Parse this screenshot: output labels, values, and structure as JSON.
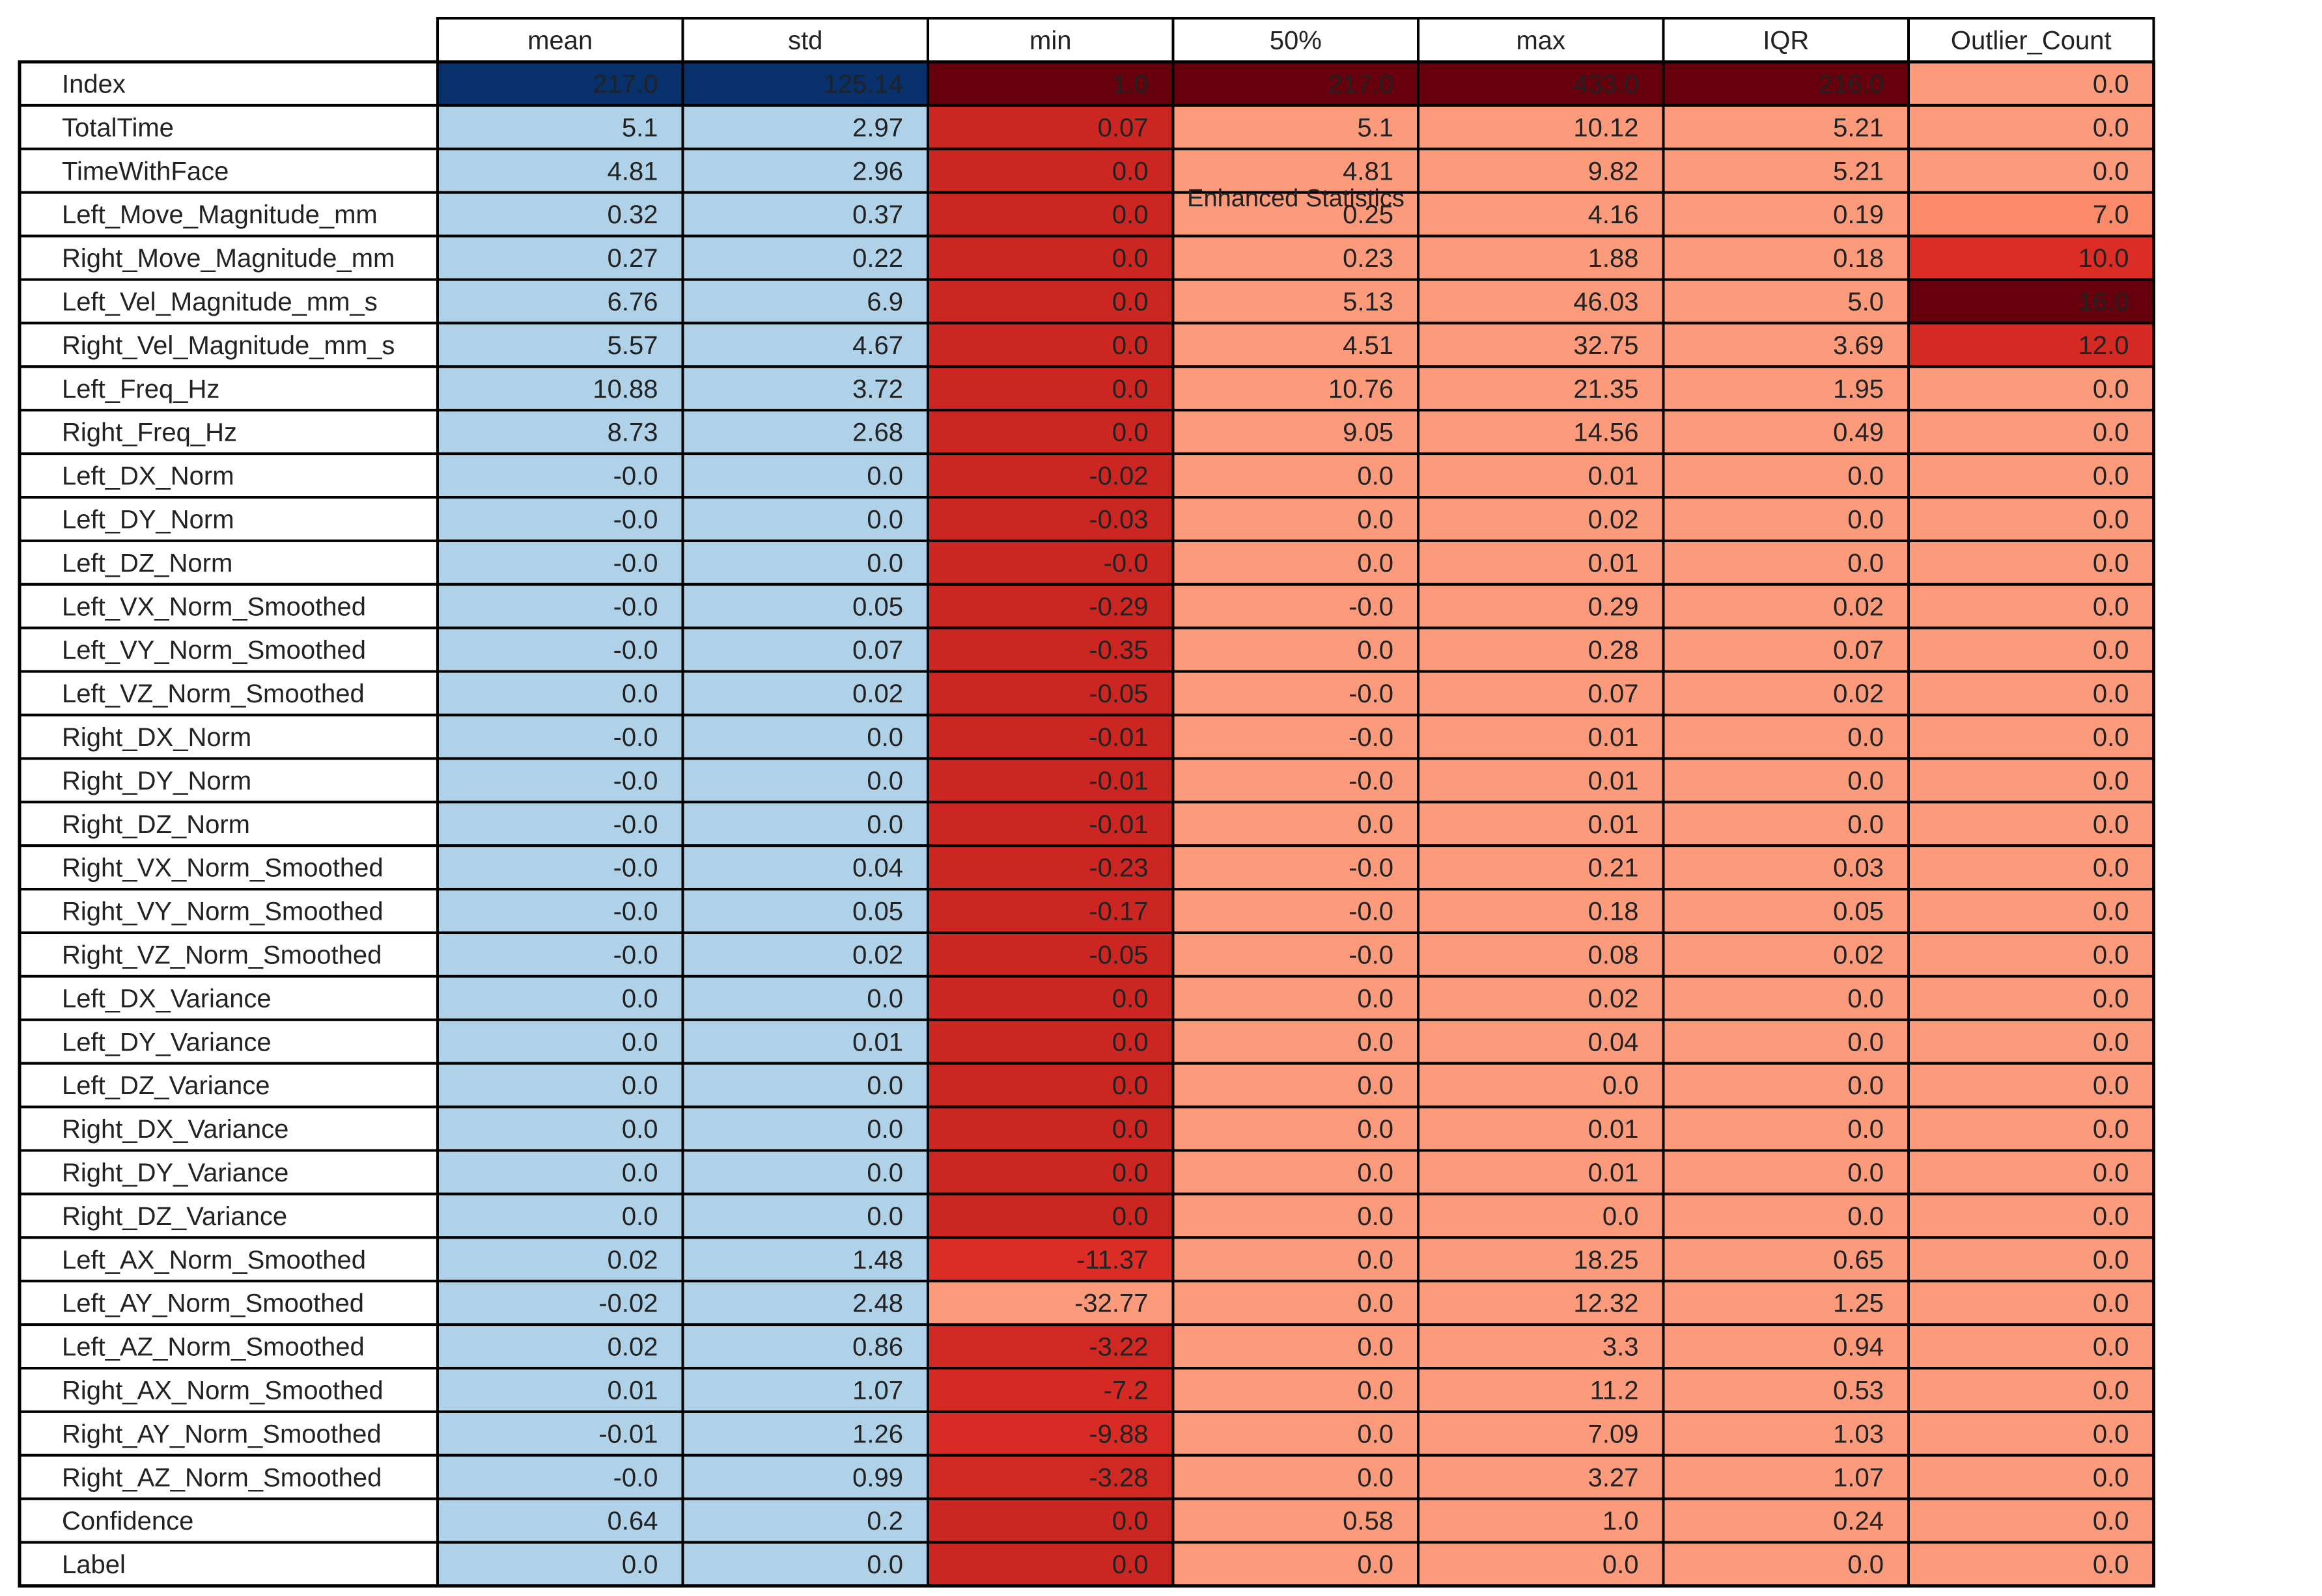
{
  "chart_data": {
    "type": "table",
    "title": "Enhanced Statistics",
    "columns": [
      "mean",
      "std",
      "min",
      "50%",
      "max",
      "IQR",
      "Outlier_Count"
    ],
    "rows": [
      {
        "label": "Index",
        "values": [
          "217.0",
          "125.14",
          "1.0",
          "217.0",
          "433.0",
          "216.0",
          "0.0"
        ]
      },
      {
        "label": "TotalTime",
        "values": [
          "5.1",
          "2.97",
          "0.07",
          "5.1",
          "10.12",
          "5.21",
          "0.0"
        ]
      },
      {
        "label": "TimeWithFace",
        "values": [
          "4.81",
          "2.96",
          "0.0",
          "4.81",
          "9.82",
          "5.21",
          "0.0"
        ]
      },
      {
        "label": "Left_Move_Magnitude_mm",
        "values": [
          "0.32",
          "0.37",
          "0.0",
          "0.25",
          "4.16",
          "0.19",
          "7.0"
        ]
      },
      {
        "label": "Right_Move_Magnitude_mm",
        "values": [
          "0.27",
          "0.22",
          "0.0",
          "0.23",
          "1.88",
          "0.18",
          "10.0"
        ]
      },
      {
        "label": "Left_Vel_Magnitude_mm_s",
        "values": [
          "6.76",
          "6.9",
          "0.0",
          "5.13",
          "46.03",
          "5.0",
          "16.0"
        ]
      },
      {
        "label": "Right_Vel_Magnitude_mm_s",
        "values": [
          "5.57",
          "4.67",
          "0.0",
          "4.51",
          "32.75",
          "3.69",
          "12.0"
        ]
      },
      {
        "label": "Left_Freq_Hz",
        "values": [
          "10.88",
          "3.72",
          "0.0",
          "10.76",
          "21.35",
          "1.95",
          "0.0"
        ]
      },
      {
        "label": "Right_Freq_Hz",
        "values": [
          "8.73",
          "2.68",
          "0.0",
          "9.05",
          "14.56",
          "0.49",
          "0.0"
        ]
      },
      {
        "label": "Left_DX_Norm",
        "values": [
          "-0.0",
          "0.0",
          "-0.02",
          "0.0",
          "0.01",
          "0.0",
          "0.0"
        ]
      },
      {
        "label": "Left_DY_Norm",
        "values": [
          "-0.0",
          "0.0",
          "-0.03",
          "0.0",
          "0.02",
          "0.0",
          "0.0"
        ]
      },
      {
        "label": "Left_DZ_Norm",
        "values": [
          "-0.0",
          "0.0",
          "-0.0",
          "0.0",
          "0.01",
          "0.0",
          "0.0"
        ]
      },
      {
        "label": "Left_VX_Norm_Smoothed",
        "values": [
          "-0.0",
          "0.05",
          "-0.29",
          "-0.0",
          "0.29",
          "0.02",
          "0.0"
        ]
      },
      {
        "label": "Left_VY_Norm_Smoothed",
        "values": [
          "-0.0",
          "0.07",
          "-0.35",
          "0.0",
          "0.28",
          "0.07",
          "0.0"
        ]
      },
      {
        "label": "Left_VZ_Norm_Smoothed",
        "values": [
          "0.0",
          "0.02",
          "-0.05",
          "-0.0",
          "0.07",
          "0.02",
          "0.0"
        ]
      },
      {
        "label": "Right_DX_Norm",
        "values": [
          "-0.0",
          "0.0",
          "-0.01",
          "-0.0",
          "0.01",
          "0.0",
          "0.0"
        ]
      },
      {
        "label": "Right_DY_Norm",
        "values": [
          "-0.0",
          "0.0",
          "-0.01",
          "-0.0",
          "0.01",
          "0.0",
          "0.0"
        ]
      },
      {
        "label": "Right_DZ_Norm",
        "values": [
          "-0.0",
          "0.0",
          "-0.01",
          "0.0",
          "0.01",
          "0.0",
          "0.0"
        ]
      },
      {
        "label": "Right_VX_Norm_Smoothed",
        "values": [
          "-0.0",
          "0.04",
          "-0.23",
          "-0.0",
          "0.21",
          "0.03",
          "0.0"
        ]
      },
      {
        "label": "Right_VY_Norm_Smoothed",
        "values": [
          "-0.0",
          "0.05",
          "-0.17",
          "-0.0",
          "0.18",
          "0.05",
          "0.0"
        ]
      },
      {
        "label": "Right_VZ_Norm_Smoothed",
        "values": [
          "-0.0",
          "0.02",
          "-0.05",
          "-0.0",
          "0.08",
          "0.02",
          "0.0"
        ]
      },
      {
        "label": "Left_DX_Variance",
        "values": [
          "0.0",
          "0.0",
          "0.0",
          "0.0",
          "0.02",
          "0.0",
          "0.0"
        ]
      },
      {
        "label": "Left_DY_Variance",
        "values": [
          "0.0",
          "0.01",
          "0.0",
          "0.0",
          "0.04",
          "0.0",
          "0.0"
        ]
      },
      {
        "label": "Left_DZ_Variance",
        "values": [
          "0.0",
          "0.0",
          "0.0",
          "0.0",
          "0.0",
          "0.0",
          "0.0"
        ]
      },
      {
        "label": "Right_DX_Variance",
        "values": [
          "0.0",
          "0.0",
          "0.0",
          "0.0",
          "0.01",
          "0.0",
          "0.0"
        ]
      },
      {
        "label": "Right_DY_Variance",
        "values": [
          "0.0",
          "0.0",
          "0.0",
          "0.0",
          "0.01",
          "0.0",
          "0.0"
        ]
      },
      {
        "label": "Right_DZ_Variance",
        "values": [
          "0.0",
          "0.0",
          "0.0",
          "0.0",
          "0.0",
          "0.0",
          "0.0"
        ]
      },
      {
        "label": "Left_AX_Norm_Smoothed",
        "values": [
          "0.02",
          "1.48",
          "-11.37",
          "0.0",
          "18.25",
          "0.65",
          "0.0"
        ]
      },
      {
        "label": "Left_AY_Norm_Smoothed",
        "values": [
          "-0.02",
          "2.48",
          "-32.77",
          "0.0",
          "12.32",
          "1.25",
          "0.0"
        ]
      },
      {
        "label": "Left_AZ_Norm_Smoothed",
        "values": [
          "0.02",
          "0.86",
          "-3.22",
          "0.0",
          "3.3",
          "0.94",
          "0.0"
        ]
      },
      {
        "label": "Right_AX_Norm_Smoothed",
        "values": [
          "0.01",
          "1.07",
          "-7.2",
          "0.0",
          "11.2",
          "0.53",
          "0.0"
        ]
      },
      {
        "label": "Right_AY_Norm_Smoothed",
        "values": [
          "-0.01",
          "1.26",
          "-9.88",
          "0.0",
          "7.09",
          "1.03",
          "0.0"
        ]
      },
      {
        "label": "Right_AZ_Norm_Smoothed",
        "values": [
          "-0.0",
          "0.99",
          "-3.28",
          "0.0",
          "3.27",
          "1.07",
          "0.0"
        ]
      },
      {
        "label": "Confidence",
        "values": [
          "0.64",
          "0.2",
          "0.0",
          "0.58",
          "1.0",
          "0.24",
          "0.0"
        ]
      },
      {
        "label": "Label",
        "values": [
          "0.0",
          "0.0",
          "0.0",
          "0.0",
          "0.0",
          "0.0",
          "0.0"
        ]
      }
    ],
    "colormaps": {
      "mean": "Blues",
      "std": "Blues",
      "min": "Reds",
      "50%": "Reds",
      "max": "Reds",
      "IQR": "Reds",
      "Outlier_Count": "Reds"
    },
    "colors": {
      "blue_dark": "#08306b",
      "blue_mid": "#2f7ebc",
      "blue_light": "#b7d4ea",
      "blue_pale": "#a8cfe5",
      "red_darkest": "#67000d",
      "red_strong": "#e32f27",
      "red_light": "#fc9b7c",
      "red_pale": "#fcaa8e",
      "red_mid": "#fb8a6a",
      "grid": "#000000",
      "text": "#222222"
    }
  }
}
